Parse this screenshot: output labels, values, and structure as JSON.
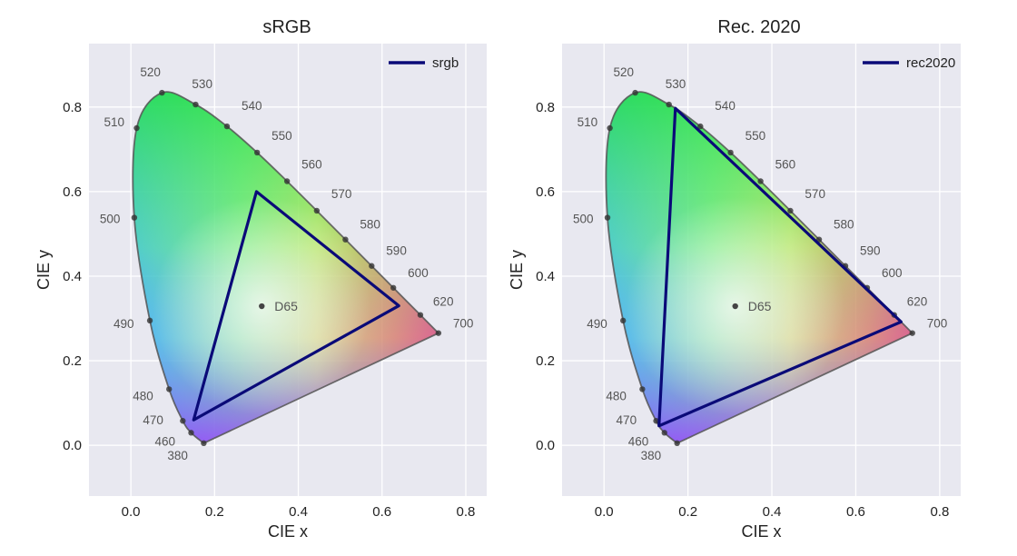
{
  "chart_data": [
    {
      "type": "scatter",
      "title": "sRGB",
      "xlabel": "CIE x",
      "ylabel": "CIE y",
      "xlim": [
        -0.1,
        0.85
      ],
      "ylim": [
        -0.12,
        0.95
      ],
      "xticks": [
        0.0,
        0.2,
        0.4,
        0.6,
        0.8
      ],
      "yticks": [
        0.0,
        0.2,
        0.4,
        0.6,
        0.8
      ],
      "tick_labels_x": [
        "0.0",
        "0.2",
        "0.4",
        "0.6",
        "0.8"
      ],
      "tick_labels_y": [
        "0.0",
        "0.2",
        "0.4",
        "0.6",
        "0.8"
      ],
      "grid": true,
      "legend_position": "top-right",
      "series": [
        {
          "name": "srgb",
          "color": "#0a0a78",
          "points": [
            [
              0.64,
              0.33
            ],
            [
              0.3,
              0.6
            ],
            [
              0.15,
              0.06
            ]
          ]
        }
      ],
      "white_point": {
        "label": "D65",
        "x": 0.3127,
        "y": 0.329
      },
      "spectral_locus": [
        {
          "label": "380",
          "x": 0.1741,
          "y": 0.005
        },
        {
          "label": "460",
          "x": 0.144,
          "y": 0.0297
        },
        {
          "label": "470",
          "x": 0.1241,
          "y": 0.0578
        },
        {
          "label": "480",
          "x": 0.0913,
          "y": 0.1327
        },
        {
          "label": "490",
          "x": 0.0454,
          "y": 0.295
        },
        {
          "label": "500",
          "x": 0.0082,
          "y": 0.5384
        },
        {
          "label": "510",
          "x": 0.0139,
          "y": 0.7502
        },
        {
          "label": "520",
          "x": 0.0743,
          "y": 0.8338
        },
        {
          "label": "530",
          "x": 0.1547,
          "y": 0.8059
        },
        {
          "label": "540",
          "x": 0.2296,
          "y": 0.7543
        },
        {
          "label": "550",
          "x": 0.3016,
          "y": 0.6923
        },
        {
          "label": "560",
          "x": 0.3731,
          "y": 0.6245
        },
        {
          "label": "570",
          "x": 0.4441,
          "y": 0.5547
        },
        {
          "label": "580",
          "x": 0.5125,
          "y": 0.4866
        },
        {
          "label": "590",
          "x": 0.5752,
          "y": 0.4242
        },
        {
          "label": "600",
          "x": 0.627,
          "y": 0.3725
        },
        {
          "label": "620",
          "x": 0.6915,
          "y": 0.3083
        },
        {
          "label": "700",
          "x": 0.7347,
          "y": 0.2653
        }
      ]
    },
    {
      "type": "scatter",
      "title": "Rec. 2020",
      "xlabel": "CIE x",
      "ylabel": "CIE y",
      "xlim": [
        -0.1,
        0.85
      ],
      "ylim": [
        -0.12,
        0.95
      ],
      "xticks": [
        0.0,
        0.2,
        0.4,
        0.6,
        0.8
      ],
      "yticks": [
        0.0,
        0.2,
        0.4,
        0.6,
        0.8
      ],
      "tick_labels_x": [
        "0.0",
        "0.2",
        "0.4",
        "0.6",
        "0.8"
      ],
      "tick_labels_y": [
        "0.0",
        "0.2",
        "0.4",
        "0.6",
        "0.8"
      ],
      "grid": true,
      "legend_position": "top-right",
      "series": [
        {
          "name": "rec2020",
          "color": "#0a0a78",
          "points": [
            [
              0.708,
              0.292
            ],
            [
              0.17,
              0.797
            ],
            [
              0.131,
              0.046
            ]
          ]
        }
      ],
      "white_point": {
        "label": "D65",
        "x": 0.3127,
        "y": 0.329
      },
      "spectral_locus": [
        {
          "label": "380",
          "x": 0.1741,
          "y": 0.005
        },
        {
          "label": "460",
          "x": 0.144,
          "y": 0.0297
        },
        {
          "label": "470",
          "x": 0.1241,
          "y": 0.0578
        },
        {
          "label": "480",
          "x": 0.0913,
          "y": 0.1327
        },
        {
          "label": "490",
          "x": 0.0454,
          "y": 0.295
        },
        {
          "label": "500",
          "x": 0.0082,
          "y": 0.5384
        },
        {
          "label": "510",
          "x": 0.0139,
          "y": 0.7502
        },
        {
          "label": "520",
          "x": 0.0743,
          "y": 0.8338
        },
        {
          "label": "530",
          "x": 0.1547,
          "y": 0.8059
        },
        {
          "label": "540",
          "x": 0.2296,
          "y": 0.7543
        },
        {
          "label": "550",
          "x": 0.3016,
          "y": 0.6923
        },
        {
          "label": "560",
          "x": 0.3731,
          "y": 0.6245
        },
        {
          "label": "570",
          "x": 0.4441,
          "y": 0.5547
        },
        {
          "label": "580",
          "x": 0.5125,
          "y": 0.4866
        },
        {
          "label": "590",
          "x": 0.5752,
          "y": 0.4242
        },
        {
          "label": "600",
          "x": 0.627,
          "y": 0.3725
        },
        {
          "label": "620",
          "x": 0.6915,
          "y": 0.3083
        },
        {
          "label": "700",
          "x": 0.7347,
          "y": 0.2653
        }
      ]
    }
  ]
}
